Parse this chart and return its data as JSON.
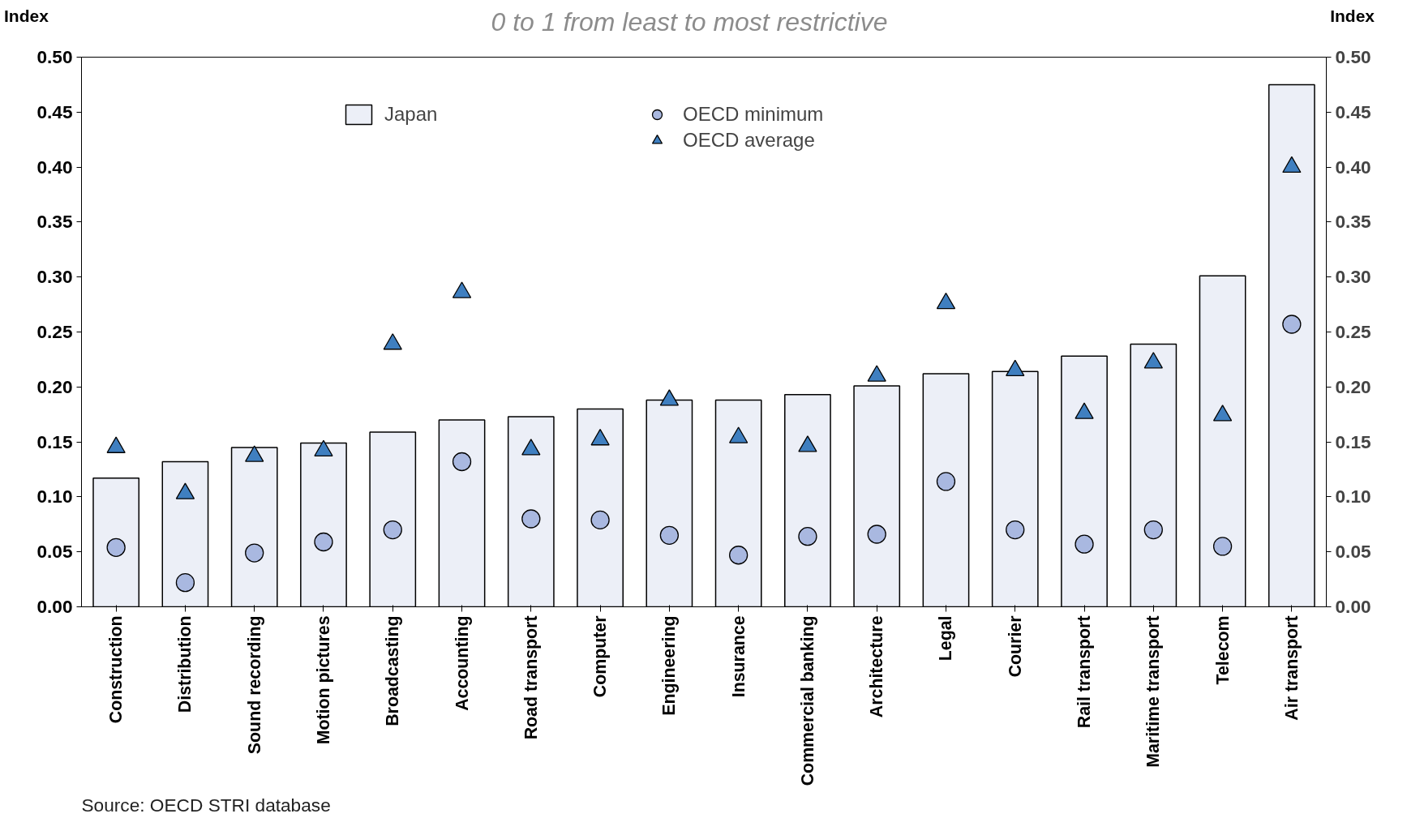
{
  "chart_data": {
    "type": "bar",
    "subtitle": "0 to 1 from least to most restrictive",
    "ylabel": "Index",
    "y2label": "Index",
    "categories": [
      "Construction",
      "Distribution",
      "Sound recording",
      "Motion pictures",
      "Broadcasting",
      "Accounting",
      "Road transport",
      "Computer",
      "Engineering",
      "Insurance",
      "Commercial banking",
      "Architecture",
      "Legal",
      "Courier",
      "Rail transport",
      "Maritime transport",
      "Telecom",
      "Air transport"
    ],
    "series": [
      {
        "name": "Japan",
        "color": "#eceff7",
        "values": [
          0.117,
          0.132,
          0.145,
          0.149,
          0.159,
          0.17,
          0.173,
          0.18,
          0.188,
          0.188,
          0.193,
          0.201,
          0.212,
          0.214,
          0.228,
          0.239,
          0.301,
          0.475
        ]
      },
      {
        "name": "OECD minimum",
        "type": "scatter",
        "marker": "circle",
        "color": "#a9b8e0",
        "values": [
          0.054,
          0.022,
          0.049,
          0.059,
          0.07,
          0.132,
          0.08,
          0.079,
          0.065,
          0.047,
          0.064,
          0.066,
          0.114,
          0.07,
          0.057,
          0.07,
          0.055,
          0.257
        ]
      },
      {
        "name": "OECD average",
        "type": "scatter",
        "marker": "triangle",
        "color": "#3f7fc0",
        "values": [
          0.145,
          0.103,
          0.137,
          0.142,
          0.239,
          0.286,
          0.143,
          0.152,
          0.188,
          0.154,
          0.146,
          0.21,
          0.276,
          0.215,
          0.176,
          0.222,
          0.174,
          0.4
        ]
      }
    ],
    "ylim": [
      0,
      0.5
    ],
    "yticks": [
      {
        "value": 0,
        "label": "0.00"
      },
      {
        "value": 0.05,
        "label": "0.05"
      },
      {
        "value": 0.1,
        "label": "0.10"
      },
      {
        "value": 0.15,
        "label": "0.15"
      },
      {
        "value": 0.2,
        "label": "0.20"
      },
      {
        "value": 0.25,
        "label": "0.25"
      },
      {
        "value": 0.3,
        "label": "0.30"
      },
      {
        "value": 0.35,
        "label": "0.35"
      },
      {
        "value": 0.4,
        "label": "0.40"
      },
      {
        "value": 0.45,
        "label": "0.45"
      },
      {
        "value": 0.5,
        "label": "0.50"
      }
    ],
    "y2lim": [
      0,
      0.5
    ],
    "y2ticks": [
      {
        "value": 0,
        "label": "0.00"
      },
      {
        "value": 0.05,
        "label": "0.05"
      },
      {
        "value": 0.1,
        "label": "0.10"
      },
      {
        "value": 0.15,
        "label": "0.15"
      },
      {
        "value": 0.2,
        "label": "0.20"
      },
      {
        "value": 0.25,
        "label": "0.25"
      },
      {
        "value": 0.3,
        "label": "0.30"
      },
      {
        "value": 0.35,
        "label": "0.35"
      },
      {
        "value": 0.4,
        "label": "0.40"
      },
      {
        "value": 0.45,
        "label": "0.45"
      },
      {
        "value": 0.5,
        "label": "0.50"
      }
    ],
    "legend": "top",
    "grid": false,
    "annotations": [
      "Source: OECD STRI database"
    ]
  }
}
